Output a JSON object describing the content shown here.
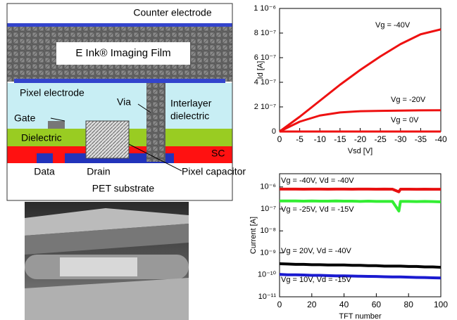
{
  "diagram": {
    "labels": {
      "counter_electrode": "Counter electrode",
      "imaging_film": "E Ink® Imaging Film",
      "pixel_electrode": "Pixel electrode",
      "via": "Via",
      "interlayer": "Interlayer",
      "dielectric_ild": "dielectric",
      "gate": "Gate",
      "dielectric": "Dielectric",
      "sc": "SC",
      "data": "Data",
      "drain": "Drain",
      "pixel_capacitor": "Pixel capacitor",
      "substrate": "PET substrate"
    }
  },
  "chart_data": [
    {
      "type": "line",
      "ylabel": "Id [A]",
      "xlabel": "Vsd [V]",
      "x": [
        0,
        -5,
        -10,
        -15,
        -20,
        -25,
        -30,
        -35,
        -40
      ],
      "xlim": [
        0,
        -40
      ],
      "xticks": [
        0,
        -5,
        -10,
        -15,
        -20,
        -25,
        -30,
        -35,
        -40
      ],
      "ylim": [
        0,
        1e-06
      ],
      "yticks": [
        0,
        {
          "value": 2e-07,
          "label": "2 10⁻⁷"
        },
        {
          "value": 4e-07,
          "label": "4 10⁻⁷"
        },
        {
          "value": 6e-07,
          "label": "6 10⁻⁷"
        },
        {
          "value": 8e-07,
          "label": "8 10⁻⁷"
        },
        {
          "value": 1e-06,
          "label": "1 10⁻⁶"
        }
      ],
      "log_y": false,
      "series": [
        {
          "name": "Vg = -40V",
          "color": "#ee1111",
          "values": [
            0,
            1.2e-07,
            2.5e-07,
            3.8e-07,
            5e-07,
            6.1e-07,
            7.1e-07,
            7.9e-07,
            8.3e-07
          ]
        },
        {
          "name": "Vg = -20V",
          "color": "#ee1111",
          "values": [
            0,
            8e-08,
            1.3e-07,
            1.55e-07,
            1.65e-07,
            1.68e-07,
            1.7e-07,
            1.72e-07,
            1.73e-07
          ]
        },
        {
          "name": "Vg = 0V",
          "color": "#ee1111",
          "values": [
            0,
            0,
            0,
            0,
            0,
            0,
            0,
            0,
            0
          ]
        }
      ]
    },
    {
      "type": "line",
      "ylabel": "Current [A]",
      "xlabel": "TFT number",
      "x": [
        0,
        5,
        10,
        15,
        20,
        25,
        30,
        35,
        40,
        45,
        50,
        55,
        60,
        65,
        70,
        74,
        75,
        80,
        85,
        90,
        95,
        100
      ],
      "xlim": [
        0,
        100
      ],
      "xticks": [
        0,
        20,
        40,
        60,
        80,
        100
      ],
      "ylim": [
        1e-11,
        4e-06
      ],
      "yticks": [
        {
          "value": 1e-11,
          "label": "10⁻¹¹"
        },
        {
          "value": 1e-10,
          "label": "10⁻¹⁰"
        },
        {
          "value": 1e-09,
          "label": "10⁻⁹"
        },
        {
          "value": 1e-08,
          "label": "10⁻⁸"
        },
        {
          "value": 1e-07,
          "label": "10⁻⁷"
        },
        {
          "value": 1e-06,
          "label": "10⁻⁶"
        }
      ],
      "log_y": true,
      "series": [
        {
          "name": "Vg = -40V, Vd = -40V",
          "color": "#e81010",
          "values": [
            8e-07,
            8e-07,
            8e-07,
            7.9e-07,
            8e-07,
            8e-07,
            7.9e-07,
            8e-07,
            8e-07,
            7.9e-07,
            8e-07,
            8e-07,
            7.9e-07,
            8e-07,
            7.9e-07,
            6e-07,
            7.9e-07,
            7.9e-07,
            7.8e-07,
            7.9e-07,
            7.8e-07,
            7.8e-07
          ]
        },
        {
          "name": "Vg = -25V, Vd = -15V",
          "color": "#33ee33",
          "values": [
            2.3e-07,
            2.3e-07,
            2.3e-07,
            2.25e-07,
            2.3e-07,
            2.25e-07,
            2.25e-07,
            2.3e-07,
            2.25e-07,
            2.25e-07,
            2.2e-07,
            2.25e-07,
            2.2e-07,
            2.2e-07,
            2.2e-07,
            8e-08,
            2.2e-07,
            2.2e-07,
            2.15e-07,
            2.2e-07,
            2.15e-07,
            2.1e-07
          ]
        },
        {
          "name": "Vg = 20V, Vd = -40V",
          "color": "#000000",
          "values": [
            3.2e-10,
            3.1e-10,
            3e-10,
            3e-10,
            2.9e-10,
            2.9e-10,
            2.8e-10,
            2.8e-10,
            2.8e-10,
            2.7e-10,
            2.7e-10,
            2.6e-10,
            2.6e-10,
            2.5e-10,
            2.5e-10,
            2.5e-10,
            2.5e-10,
            2.4e-10,
            2.4e-10,
            2.3e-10,
            2.3e-10,
            2.2e-10
          ]
        },
        {
          "name": "Vg = 10V, Vd = -15V",
          "color": "#1a1ad0",
          "values": [
            1.05e-10,
            1e-10,
            1e-10,
            9.8e-11,
            9.5e-11,
            9.5e-11,
            9.2e-11,
            9e-11,
            9e-11,
            8.8e-11,
            8.6e-11,
            8.5e-11,
            8.4e-11,
            8.2e-11,
            8e-11,
            8e-11,
            8e-11,
            7.8e-11,
            7.6e-11,
            7.5e-11,
            7.3e-11,
            7.2e-11
          ]
        }
      ]
    }
  ]
}
